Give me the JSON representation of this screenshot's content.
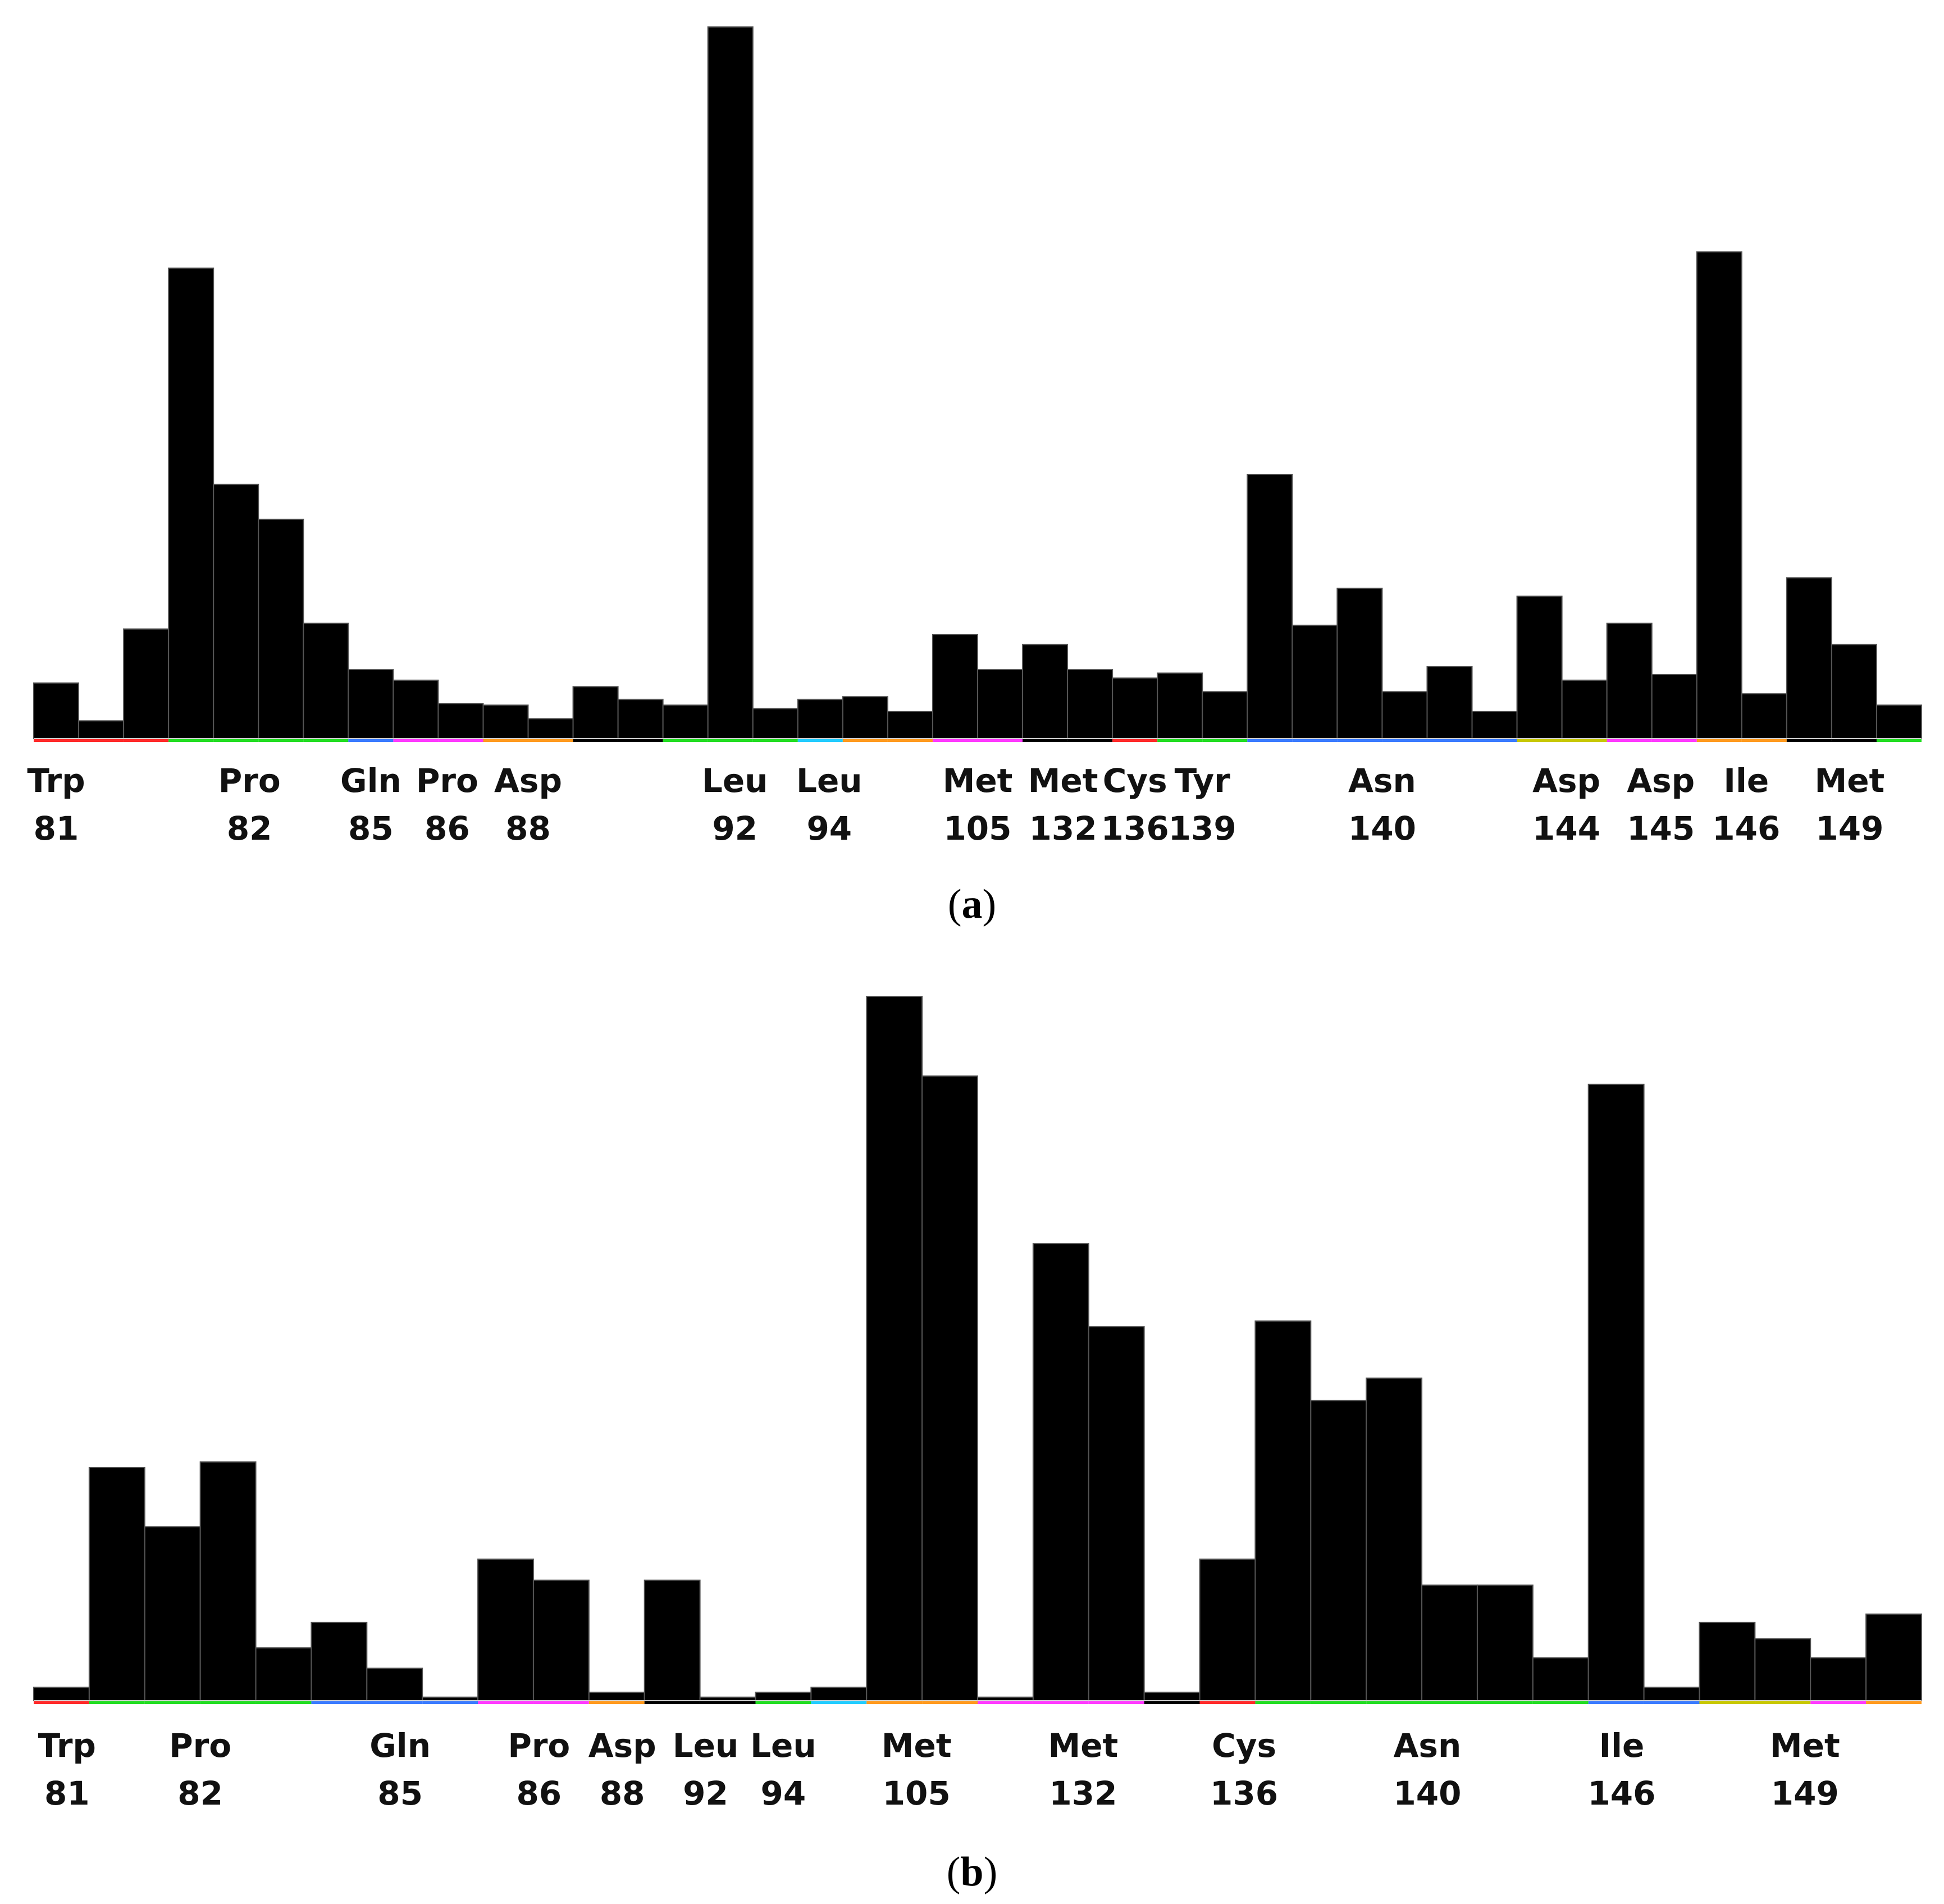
{
  "panels": [
    {
      "label_open": "(",
      "label_letter": "a",
      "label_close": ")"
    },
    {
      "label_open": "(",
      "label_letter": "b",
      "label_close": ")"
    }
  ],
  "chart_data": [
    {
      "type": "bar",
      "title": "",
      "xlabel": "",
      "ylabel": "",
      "ylim": [
        0,
        100
      ],
      "grid": false,
      "legend": "none",
      "bar_color": "#000000",
      "values": [
        7.8,
        2.5,
        15.4,
        66.1,
        35.7,
        30.8,
        16.2,
        9.7,
        8.2,
        4.9,
        4.7,
        2.8,
        7.3,
        5.5,
        4.7,
        100,
        4.2,
        5.5,
        5.9,
        3.8,
        14.6,
        9.7,
        13.2,
        9.7,
        8.5,
        9.2,
        6.6,
        37.1,
        15.9,
        21.1,
        6.6,
        10.1,
        3.8,
        20.0,
        8.2,
        16.2,
        9.0,
        68.4,
        6.3,
        22.6,
        13.2,
        4.7
      ],
      "residue_underline_colors": [
        "#ff2a2a",
        "#ff2a2a",
        "#ff2a2a",
        "#22dd22",
        "#22dd22",
        "#22dd22",
        "#22dd22",
        "#3a7bff",
        "#ff3aff",
        "#ff3aff",
        "#ff9a1e",
        "#ff9a1e",
        "#000000",
        "#000000",
        "#22dd22",
        "#22dd22",
        "#22dd22",
        "#22ccff",
        "#ff9a1e",
        "#ff9a1e",
        "#ff3aff",
        "#ff3aff",
        "#000000",
        "#000000",
        "#ff2a2a",
        "#22dd22",
        "#22dd22",
        "#3a7bff",
        "#3a7bff",
        "#3a7bff",
        "#3a7bff",
        "#3a7bff",
        "#3a7bff",
        "#c8c800",
        "#c8c800",
        "#ff3aff",
        "#ff3aff",
        "#ff9a1e",
        "#ff9a1e",
        "#000000",
        "#000000",
        "#22dd22"
      ],
      "tick_labels": [
        {
          "name": "Trp",
          "number": "81",
          "bar_index": 0.5
        },
        {
          "name": "Pro",
          "number": "82",
          "bar_index": 4.8
        },
        {
          "name": "Gln",
          "number": "85",
          "bar_index": 7.5
        },
        {
          "name": "Pro",
          "number": "86",
          "bar_index": 9.2
        },
        {
          "name": "Asp",
          "number": "88",
          "bar_index": 11.0
        },
        {
          "name": "Leu",
          "number": "92",
          "bar_index": 15.6
        },
        {
          "name": "Leu",
          "number": "94",
          "bar_index": 17.7
        },
        {
          "name": "Met",
          "number": "105",
          "bar_index": 21.0
        },
        {
          "name": "Met",
          "number": "132",
          "bar_index": 22.9
        },
        {
          "name": "Cys",
          "number": "136",
          "bar_index": 24.5
        },
        {
          "name": "Tyr",
          "number": "139",
          "bar_index": 26.0
        },
        {
          "name": "Asn",
          "number": "140",
          "bar_index": 30.0
        },
        {
          "name": "Asp",
          "number": "144",
          "bar_index": 34.1
        },
        {
          "name": "Asp",
          "number": "145",
          "bar_index": 36.2
        },
        {
          "name": "Ile",
          "number": "146",
          "bar_index": 38.1
        },
        {
          "name": "Met",
          "number": "149",
          "bar_index": 40.4
        }
      ]
    },
    {
      "type": "bar",
      "title": "",
      "xlabel": "",
      "ylabel": "",
      "ylim": [
        0,
        100
      ],
      "grid": false,
      "legend": "none",
      "bar_color": "#000000",
      "values": [
        1.9,
        33.1,
        24.7,
        33.9,
        7.5,
        11.1,
        4.6,
        0.5,
        20.1,
        17.1,
        1.2,
        17.1,
        0.5,
        1.2,
        1.9,
        100,
        88.7,
        0.5,
        64.9,
        53.1,
        1.2,
        20.1,
        53.9,
        42.6,
        45.8,
        16.4,
        16.4,
        6.1,
        87.5,
        1.9,
        11.1,
        8.8,
        6.1,
        12.3
      ],
      "residue_underline_colors": [
        "#ff2a2a",
        "#22dd22",
        "#22dd22",
        "#22dd22",
        "#22dd22",
        "#3a7bff",
        "#3a7bff",
        "#3a7bff",
        "#ff3aff",
        "#ff3aff",
        "#ff9a1e",
        "#000000",
        "#000000",
        "#22dd22",
        "#22ccff",
        "#ff9a1e",
        "#ff9a1e",
        "#ff3aff",
        "#ff3aff",
        "#ff3aff",
        "#000000",
        "#ff2a2a",
        "#22dd22",
        "#22dd22",
        "#22dd22",
        "#22dd22",
        "#22dd22",
        "#22dd22",
        "#3a7bff",
        "#3a7bff",
        "#c8c800",
        "#c8c800",
        "#ff3aff",
        "#ff9a1e"
      ],
      "tick_labels": [
        {
          "name": "Trp",
          "number": "81",
          "bar_index": 0.6
        },
        {
          "name": "Pro",
          "number": "82",
          "bar_index": 3.0
        },
        {
          "name": "Gln",
          "number": "85",
          "bar_index": 6.6
        },
        {
          "name": "Pro",
          "number": "86",
          "bar_index": 9.1
        },
        {
          "name": "Asp",
          "number": "88",
          "bar_index": 10.6
        },
        {
          "name": "Leu",
          "number": "92",
          "bar_index": 12.1
        },
        {
          "name": "Leu",
          "number": "94",
          "bar_index": 13.5
        },
        {
          "name": "Met",
          "number": "105",
          "bar_index": 15.9
        },
        {
          "name": "Met",
          "number": "132",
          "bar_index": 18.9
        },
        {
          "name": "Cys",
          "number": "136",
          "bar_index": 21.8
        },
        {
          "name": "Asn",
          "number": "140",
          "bar_index": 25.1
        },
        {
          "name": "Ile",
          "number": "146",
          "bar_index": 28.6
        },
        {
          "name": "Met",
          "number": "149",
          "bar_index": 31.9
        }
      ]
    }
  ]
}
